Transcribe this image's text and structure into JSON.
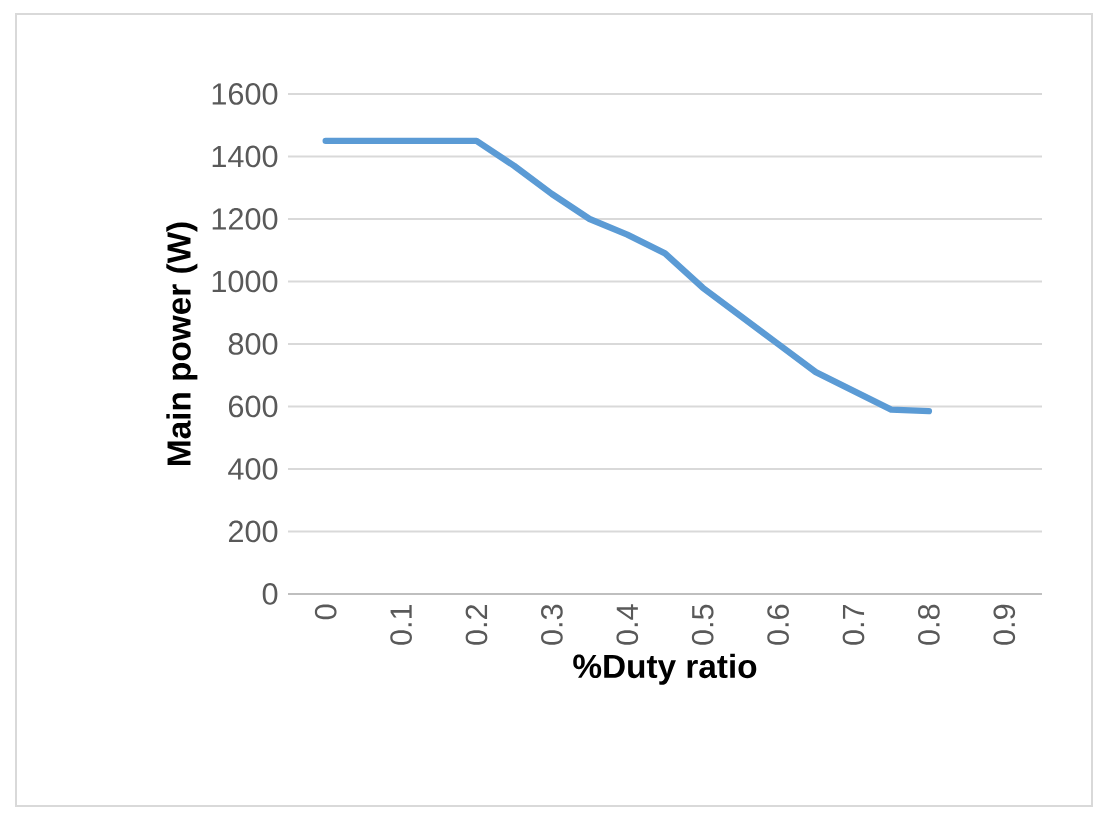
{
  "chart_data": {
    "type": "line",
    "xlabel": "%Duty ratio",
    "ylabel": "Main power (W)",
    "x": [
      0,
      0.1,
      0.2,
      0.25,
      0.3,
      0.35,
      0.4,
      0.45,
      0.5,
      0.55,
      0.6,
      0.65,
      0.7,
      0.75,
      0.8
    ],
    "values": [
      1450,
      1450,
      1450,
      1370,
      1280,
      1200,
      1150,
      1090,
      980,
      890,
      800,
      710,
      650,
      590,
      585
    ],
    "color": "#5b9bd5",
    "line_style": "solid",
    "marker": "none",
    "xlim": [
      -0.05,
      0.95
    ],
    "xticks": [
      0,
      0.1,
      0.2,
      0.3,
      0.4,
      0.5,
      0.6,
      0.7,
      0.8,
      0.9
    ],
    "ylim": [
      0,
      1600
    ],
    "yticks": [
      0,
      200,
      400,
      600,
      800,
      1000,
      1200,
      1400,
      1600
    ],
    "grid": "y"
  }
}
